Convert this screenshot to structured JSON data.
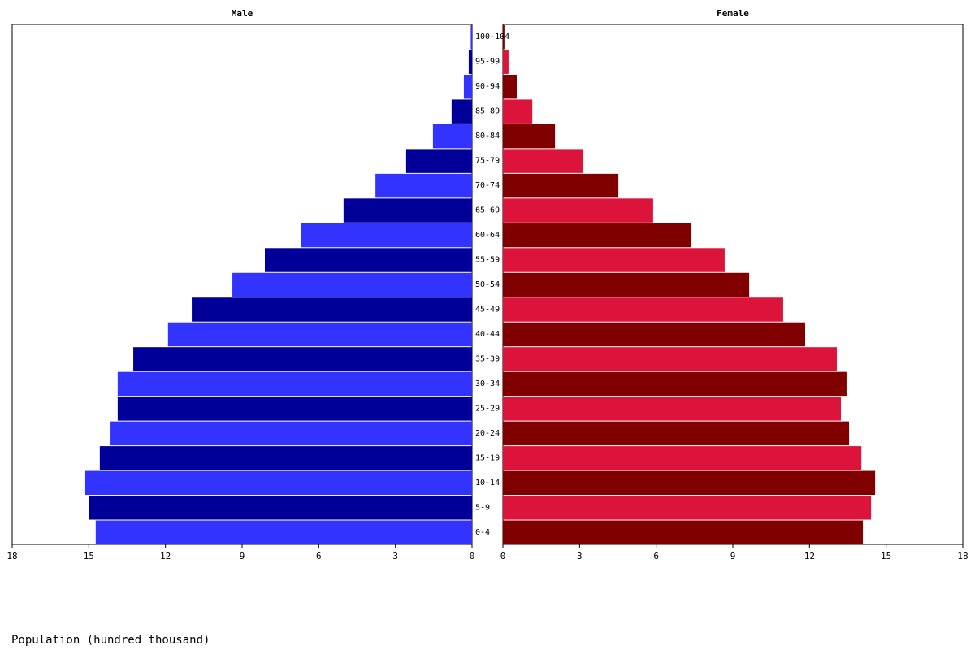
{
  "chart_data": {
    "type": "pyramid",
    "categories": [
      "0-4",
      "5-9",
      "10-14",
      "15-19",
      "20-24",
      "25-29",
      "30-34",
      "35-39",
      "40-44",
      "45-49",
      "50-54",
      "55-59",
      "60-64",
      "65-69",
      "70-74",
      "75-79",
      "80-84",
      "85-89",
      "90-94",
      "95-99",
      "100-104"
    ],
    "series": [
      {
        "name": "Male",
        "colors": [
          "#3333ff",
          "#000099"
        ],
        "values": [
          14.73,
          15.01,
          15.14,
          14.57,
          14.15,
          13.87,
          13.87,
          13.26,
          11.9,
          10.97,
          9.38,
          8.11,
          6.71,
          5.03,
          3.78,
          2.58,
          1.53,
          0.8,
          0.32,
          0.13,
          0.05
        ]
      },
      {
        "name": "Female",
        "colors": [
          "#800000",
          "#dc143c"
        ],
        "values": [
          14.09,
          14.41,
          14.57,
          14.03,
          13.55,
          13.23,
          13.45,
          13.07,
          11.83,
          10.97,
          9.64,
          8.68,
          7.38,
          5.88,
          4.52,
          3.12,
          2.04,
          1.15,
          0.54,
          0.22,
          0.06
        ]
      }
    ],
    "xlim": [
      0,
      18
    ],
    "xticks": [
      0,
      3,
      6,
      9,
      12,
      15,
      18
    ],
    "xlabel": "Population (hundred thousand)"
  }
}
